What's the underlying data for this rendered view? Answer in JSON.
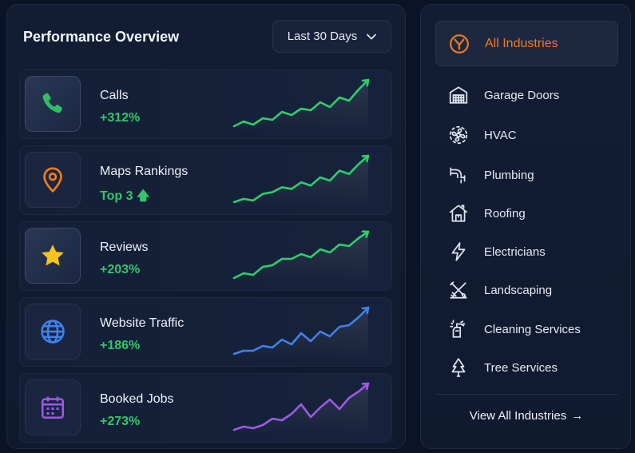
{
  "performance": {
    "title": "Performance Overview",
    "range_label": "Last 30 Days",
    "metrics": [
      {
        "label": "Calls",
        "value": "+312%",
        "icon": "phone-icon",
        "value_color": "#35c46a",
        "line_color": "#2fcf6a",
        "trend": [
          4,
          10,
          6,
          14,
          12,
          22,
          18,
          26,
          24,
          34,
          28,
          40,
          36,
          50,
          62
        ]
      },
      {
        "label": "Maps Rankings",
        "value": "Top 3",
        "icon": "map-pin-icon",
        "value_color": "#35c46a",
        "line_color": "#2fcf6a",
        "trend": [
          6,
          10,
          8,
          16,
          18,
          24,
          22,
          30,
          26,
          36,
          32,
          44,
          40,
          52,
          62
        ]
      },
      {
        "label": "Reviews",
        "value": "+203%",
        "icon": "star-icon",
        "value_color": "#35c46a",
        "line_color": "#2fcf6a",
        "trend": [
          4,
          10,
          8,
          18,
          20,
          28,
          28,
          34,
          30,
          40,
          36,
          46,
          44,
          54,
          62
        ]
      },
      {
        "label": "Website Traffic",
        "value": "+186%",
        "icon": "globe-icon",
        "value_color": "#35c46a",
        "line_color": "#3f82ec",
        "trend": [
          4,
          8,
          8,
          14,
          12,
          22,
          16,
          30,
          20,
          32,
          26,
          38,
          40,
          50,
          62
        ]
      },
      {
        "label": "Booked Jobs",
        "value": "+273%",
        "icon": "calendar-icon",
        "value_color": "#35c46a",
        "line_color": "#9d5ae6",
        "trend": [
          4,
          8,
          6,
          10,
          18,
          16,
          24,
          36,
          20,
          32,
          42,
          30,
          44,
          52,
          62
        ]
      }
    ]
  },
  "industries": {
    "items": [
      {
        "label": "All Industries",
        "icon": "all-industries-logo-icon",
        "active": true
      },
      {
        "label": "Garage Doors",
        "icon": "garage-icon"
      },
      {
        "label": "HVAC",
        "icon": "hvac-fan-icon"
      },
      {
        "label": "Plumbing",
        "icon": "plumbing-pipe-icon"
      },
      {
        "label": "Roofing",
        "icon": "house-roof-icon"
      },
      {
        "label": "Electricians",
        "icon": "lightning-icon"
      },
      {
        "label": "Landscaping",
        "icon": "shovel-rake-icon"
      },
      {
        "label": "Cleaning Services",
        "icon": "cleaning-spray-icon"
      },
      {
        "label": "Tree Services",
        "icon": "tree-icon"
      }
    ],
    "view_all_label": "View All Industries",
    "accent": "#f07b1e"
  }
}
